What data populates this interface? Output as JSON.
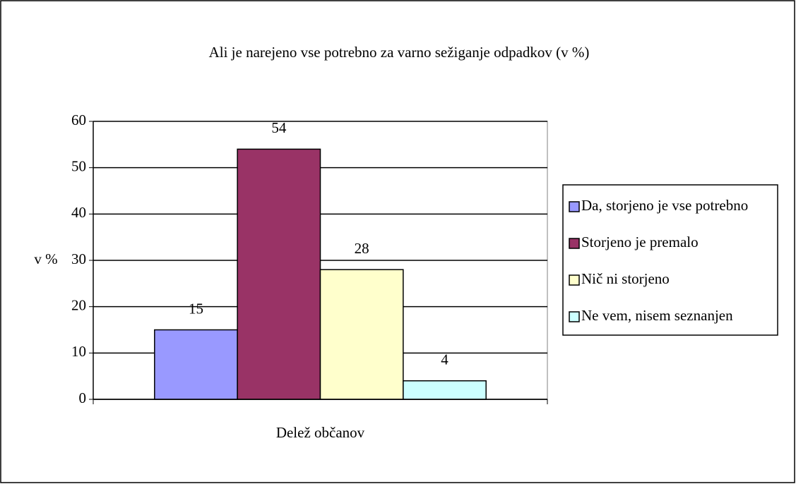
{
  "chart_data": {
    "type": "bar",
    "title": "Ali je narejeno vse potrebno za varno sežiganje odpadkov (v %)",
    "y_label": "v %",
    "categories": [
      "Delež občanov"
    ],
    "series": [
      {
        "name": "Da, storjeno je vse potrebno",
        "color": "#9999ff",
        "values": [
          15
        ]
      },
      {
        "name": "Storjeno je premalo",
        "color": "#993366",
        "values": [
          54
        ]
      },
      {
        "name": "Nič ni storjeno",
        "color": "#ffffcc",
        "values": [
          28
        ]
      },
      {
        "name": "Ne vem, nisem seznanjen",
        "color": "#ccffff",
        "values": [
          4
        ]
      }
    ],
    "ylim": [
      0,
      60
    ],
    "yticks": [
      0,
      10,
      20,
      30,
      40,
      50,
      60
    ],
    "grid": true,
    "legend": "right",
    "data_labels": true
  }
}
